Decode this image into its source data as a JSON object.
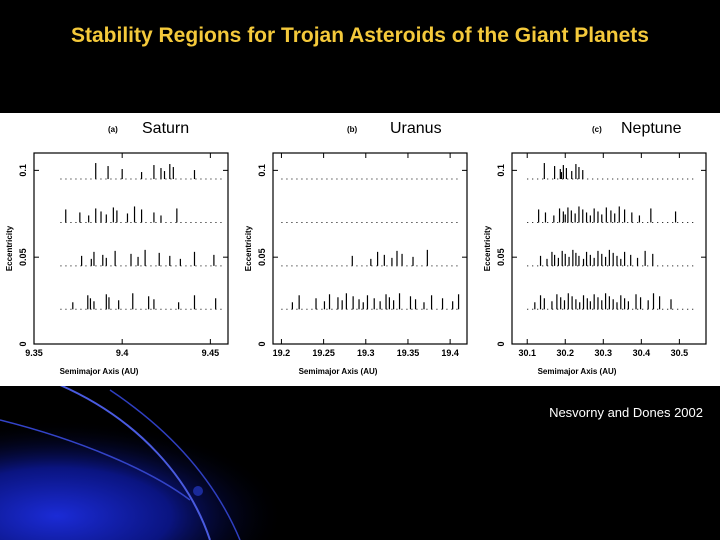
{
  "slide": {
    "title": "Stability Regions for Trojan Asteroids of the Giant Planets",
    "citation": "Nesvorny and Dones 2002",
    "title_color": "#f4c93b",
    "background_color": "#000000"
  },
  "chart_data": [
    {
      "type": "scatter",
      "panel_label": "(a)",
      "planet": "Saturn",
      "xlabel": "Semimajor Axis (AU)",
      "ylabel": "Eccentricity",
      "xlim": [
        9.35,
        9.46
      ],
      "ylim": [
        0,
        0.11
      ],
      "xticks": [
        "9.35",
        "9.4",
        "9.45"
      ],
      "xtick_values": [
        9.35,
        9.4,
        9.45
      ],
      "yticks": [
        "0",
        "0.05",
        "0.1"
      ],
      "ytick_values": [
        0,
        0.05,
        0.1
      ],
      "e_levels": [
        0.02,
        0.045,
        0.07,
        0.095
      ],
      "x_range": [
        9.365,
        9.457
      ],
      "stable_x": [
        [
          9.372,
          9.3805,
          9.382,
          9.384,
          9.391,
          9.3925,
          9.398,
          9.406,
          9.415,
          9.418,
          9.432,
          9.441,
          9.453
        ],
        [
          9.377,
          9.3825,
          9.384,
          9.389,
          9.391,
          9.396,
          9.405,
          9.409,
          9.413,
          9.421,
          9.427,
          9.433,
          9.441,
          9.452
        ],
        [
          9.368,
          9.376,
          9.381,
          9.385,
          9.388,
          9.391,
          9.395,
          9.397,
          9.403,
          9.407,
          9.411,
          9.418,
          9.422,
          9.431
        ],
        [
          9.385,
          9.392,
          9.4,
          9.411,
          9.418,
          9.422,
          9.424,
          9.427,
          9.429,
          9.441
        ]
      ]
    },
    {
      "type": "scatter",
      "panel_label": "(b)",
      "planet": "Uranus",
      "xlabel": "Semimajor Axis (AU)",
      "ylabel": "Eccentricity",
      "xlim": [
        19.19,
        19.42
      ],
      "ylim": [
        0,
        0.11
      ],
      "xticks": [
        "19.2",
        "19.25",
        "19.3",
        "19.35",
        "19.4"
      ],
      "xtick_values": [
        19.2,
        19.25,
        19.3,
        19.35,
        19.4
      ],
      "yticks": [
        "0",
        "0.05",
        "0.1"
      ],
      "ytick_values": [
        0,
        0.05,
        0.1
      ],
      "e_levels": [
        0.02,
        0.045,
        0.07,
        0.095
      ],
      "x_range": [
        19.2,
        19.413
      ],
      "stable_x": [
        [
          19.213,
          19.221,
          19.241,
          19.251,
          19.257,
          19.267,
          19.272,
          19.277,
          19.285,
          19.292,
          19.297,
          19.302,
          19.31,
          19.317,
          19.324,
          19.328,
          19.333,
          19.34,
          19.353,
          19.359,
          19.369,
          19.378,
          19.391,
          19.403,
          19.41
        ],
        [
          19.284,
          19.306,
          19.314,
          19.322,
          19.331,
          19.337,
          19.343,
          19.356,
          19.373
        ],
        [],
        []
      ]
    },
    {
      "type": "scatter",
      "panel_label": "(c)",
      "planet": "Neptune",
      "xlabel": "Semimajor Axis (AU)",
      "ylabel": "Eccentricity",
      "xlim": [
        30.06,
        30.57
      ],
      "ylim": [
        0,
        0.11
      ],
      "xticks": [
        "30.1",
        "30.2",
        "30.3",
        "30.4",
        "30.5"
      ],
      "xtick_values": [
        30.1,
        30.2,
        30.3,
        30.4,
        30.5
      ],
      "yticks": [
        "0",
        "0.05",
        "0.1"
      ],
      "ytick_values": [
        0,
        0.05,
        0.1
      ],
      "e_levels": [
        0.02,
        0.045,
        0.07,
        0.095
      ],
      "x_range": [
        30.1,
        30.54
      ],
      "stable_x": [
        [
          30.12,
          30.135,
          30.145,
          30.165,
          30.178,
          30.188,
          30.198,
          30.208,
          30.218,
          30.228,
          30.238,
          30.248,
          30.258,
          30.266,
          30.276,
          30.286,
          30.296,
          30.306,
          30.316,
          30.326,
          30.336,
          30.346,
          30.356,
          30.366,
          30.386,
          30.398,
          30.418,
          30.432,
          30.448,
          30.478
        ],
        [
          30.135,
          30.152,
          30.165,
          30.172,
          30.182,
          30.192,
          30.2,
          30.21,
          30.22,
          30.228,
          30.236,
          30.248,
          30.256,
          30.266,
          30.276,
          30.286,
          30.296,
          30.306,
          30.316,
          30.326,
          30.336,
          30.346,
          30.356,
          30.372,
          30.39,
          30.41,
          30.43
        ],
        [
          30.13,
          30.148,
          30.17,
          30.185,
          30.195,
          30.2,
          30.207,
          30.216,
          30.226,
          30.236,
          30.246,
          30.256,
          30.266,
          30.276,
          30.286,
          30.296,
          30.308,
          30.32,
          30.33,
          30.342,
          30.356,
          30.375,
          30.395,
          30.425,
          30.49
        ],
        [
          30.145,
          30.172,
          30.187,
          30.19,
          30.195,
          30.203,
          30.217,
          30.228,
          30.236,
          30.246
        ]
      ]
    }
  ]
}
